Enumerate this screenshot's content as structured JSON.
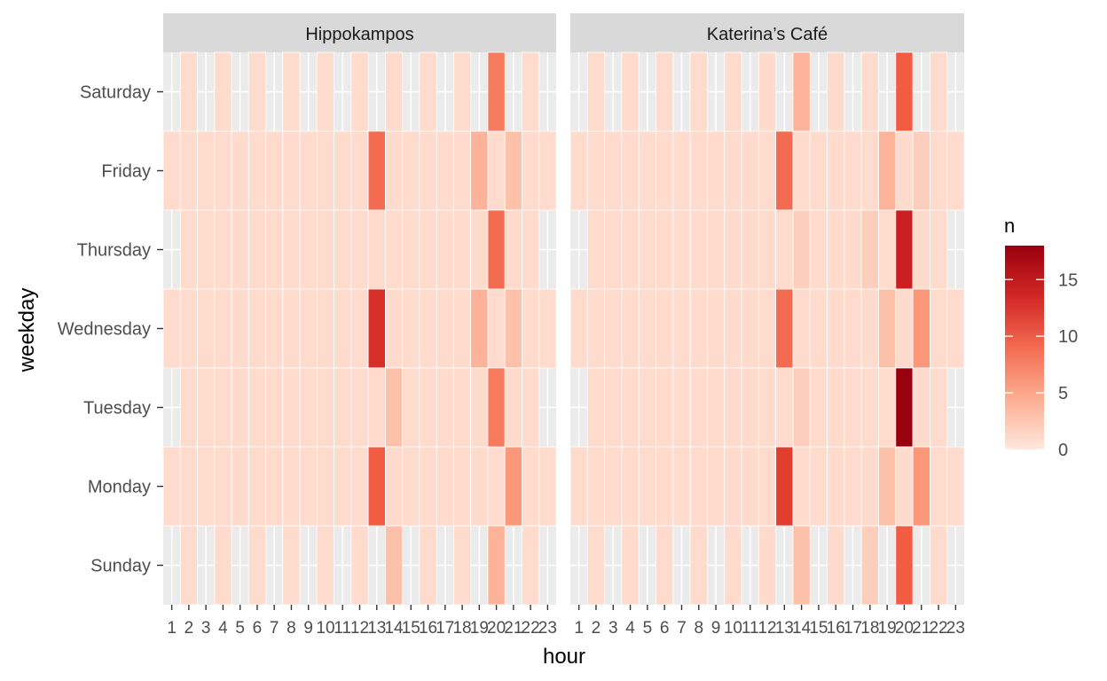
{
  "chart_data": {
    "type": "heatmap",
    "xlabel": "hour",
    "ylabel": "weekday",
    "x_ticks": [
      1,
      2,
      3,
      4,
      5,
      6,
      7,
      8,
      9,
      10,
      11,
      12,
      13,
      14,
      15,
      16,
      17,
      18,
      19,
      20,
      21,
      22,
      23
    ],
    "weekdays": [
      "Saturday",
      "Friday",
      "Thursday",
      "Wednesday",
      "Tuesday",
      "Monday",
      "Sunday"
    ],
    "legend": {
      "title": "n",
      "breaks": [
        0,
        5,
        10,
        15
      ],
      "range": [
        0,
        18
      ],
      "low_color": "#fee8de",
      "high_color": "#99000d",
      "position": "right"
    },
    "colors": {
      "panel_bg": "#ebebeb",
      "strip_bg": "#d9d9d9",
      "grid": "#ffffff"
    },
    "panels": [
      {
        "name": "Hippokampos",
        "rows": {
          "Saturday": {
            "2": 1,
            "4": 1,
            "6": 1,
            "8": 1,
            "10": 1,
            "12": 1,
            "14": 1,
            "16": 1,
            "18": 1,
            "20": 8,
            "22": 1
          },
          "Friday": {
            "1": 1,
            "2": 1,
            "3": 1,
            "4": 1,
            "5": 1,
            "6": 1,
            "7": 1,
            "8": 1,
            "9": 1,
            "10": 1,
            "11": 1,
            "12": 1,
            "13": 9,
            "14": 1,
            "15": 1,
            "16": 1,
            "17": 1,
            "18": 1,
            "19": 4,
            "20": 1,
            "21": 3,
            "22": 1,
            "23": 1
          },
          "Thursday": {
            "2": 1,
            "3": 1,
            "4": 1,
            "5": 1,
            "6": 1,
            "7": 1,
            "8": 1,
            "9": 1,
            "10": 1,
            "11": 1,
            "12": 1,
            "13": 1,
            "14": 1,
            "15": 1,
            "16": 1,
            "17": 1,
            "18": 1,
            "19": 1,
            "20": 9,
            "21": 1,
            "22": 1
          },
          "Wednesday": {
            "1": 1,
            "2": 1,
            "3": 1,
            "4": 1,
            "5": 1,
            "6": 1,
            "7": 1,
            "8": 1,
            "9": 1,
            "10": 1,
            "11": 1,
            "12": 1,
            "13": 13,
            "14": 1,
            "15": 1,
            "16": 1,
            "17": 1,
            "18": 1,
            "19": 4,
            "20": 1,
            "21": 3,
            "22": 1,
            "23": 1
          },
          "Tuesday": {
            "2": 1,
            "3": 1,
            "4": 1,
            "5": 1,
            "6": 1,
            "7": 1,
            "8": 1,
            "9": 1,
            "10": 1,
            "11": 1,
            "12": 1,
            "13": 1,
            "14": 3,
            "15": 1,
            "16": 1,
            "17": 1,
            "18": 1,
            "19": 1,
            "20": 8,
            "21": 1,
            "22": 1
          },
          "Monday": {
            "1": 1,
            "2": 1,
            "3": 1,
            "4": 1,
            "5": 1,
            "6": 1,
            "7": 1,
            "8": 1,
            "9": 1,
            "10": 1,
            "11": 1,
            "12": 1,
            "13": 10,
            "14": 1,
            "15": 1,
            "16": 1,
            "17": 1,
            "18": 1,
            "19": 1,
            "20": 1,
            "21": 6,
            "22": 1,
            "23": 1
          },
          "Sunday": {
            "2": 1,
            "4": 1,
            "6": 1,
            "8": 1,
            "10": 1,
            "12": 1,
            "14": 3,
            "16": 1,
            "18": 1,
            "20": 4,
            "22": 1
          }
        }
      },
      {
        "name": "Katerina’s Café",
        "rows": {
          "Saturday": {
            "2": 1,
            "4": 1,
            "6": 1,
            "8": 1,
            "10": 1,
            "12": 1,
            "14": 4,
            "16": 1,
            "18": 1,
            "20": 10,
            "22": 1
          },
          "Friday": {
            "1": 1,
            "2": 1,
            "3": 1,
            "4": 1,
            "5": 1,
            "6": 1,
            "7": 1,
            "8": 1,
            "9": 1,
            "10": 1,
            "11": 1,
            "12": 1,
            "13": 9,
            "14": 1,
            "15": 1,
            "16": 1,
            "17": 1,
            "18": 1,
            "19": 4,
            "20": 1,
            "21": 2,
            "22": 1,
            "23": 1
          },
          "Thursday": {
            "2": 1,
            "3": 1,
            "4": 1,
            "5": 1,
            "6": 1,
            "7": 1,
            "8": 1,
            "9": 1,
            "10": 1,
            "11": 1,
            "12": 1,
            "13": 1,
            "14": 2,
            "15": 1,
            "16": 1,
            "17": 1,
            "18": 2,
            "19": 1,
            "20": 14,
            "21": 1,
            "22": 1
          },
          "Wednesday": {
            "1": 1,
            "2": 1,
            "3": 1,
            "4": 1,
            "5": 1,
            "6": 1,
            "7": 1,
            "8": 1,
            "9": 1,
            "10": 1,
            "11": 1,
            "12": 1,
            "13": 9,
            "14": 1,
            "15": 1,
            "16": 1,
            "17": 1,
            "18": 1,
            "19": 3,
            "20": 1,
            "21": 6,
            "22": 1,
            "23": 1
          },
          "Tuesday": {
            "2": 1,
            "3": 1,
            "4": 1,
            "5": 1,
            "6": 1,
            "7": 1,
            "8": 1,
            "9": 1,
            "10": 1,
            "11": 1,
            "12": 1,
            "13": 1,
            "14": 2,
            "15": 1,
            "16": 1,
            "17": 1,
            "18": 1,
            "19": 1,
            "20": 18,
            "21": 1,
            "22": 1
          },
          "Monday": {
            "1": 1,
            "2": 1,
            "3": 1,
            "4": 1,
            "5": 1,
            "6": 1,
            "7": 1,
            "8": 1,
            "9": 1,
            "10": 1,
            "11": 1,
            "12": 1,
            "13": 12,
            "14": 1,
            "15": 1,
            "16": 1,
            "17": 1,
            "18": 1,
            "19": 3,
            "20": 1,
            "21": 6,
            "22": 1,
            "23": 1
          },
          "Sunday": {
            "2": 1,
            "4": 1,
            "6": 1,
            "8": 1,
            "10": 1,
            "12": 1,
            "14": 3,
            "16": 1,
            "18": 2,
            "20": 10,
            "22": 1
          }
        }
      }
    ]
  }
}
